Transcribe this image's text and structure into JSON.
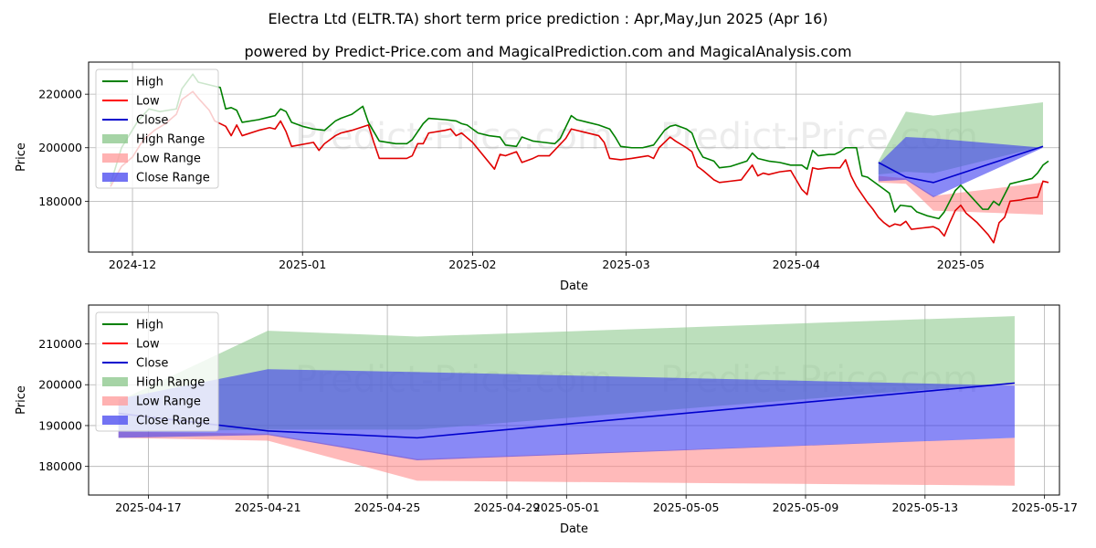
{
  "title_line1": "Electra Ltd (ELTR.TA) short term price prediction : Apr,May,Jun 2025 (Apr 16)",
  "title_line2": "powered by Predict-Price.com and MagicalPrediction.com and MagicalAnalysis.com",
  "watermark": "Predict-Price.com",
  "chart_data": [
    {
      "type": "line",
      "xlabel": "Date",
      "ylabel": "Price",
      "grid": true,
      "legend_position": "top-left",
      "xlim": [
        "2024-11-23",
        "2025-05-19"
      ],
      "ylim": [
        161000,
        232000
      ],
      "x_ticks": [
        {
          "date": "2024-12-01",
          "label": "2024-12"
        },
        {
          "date": "2025-01-01",
          "label": "2025-01"
        },
        {
          "date": "2025-02-01",
          "label": "2025-02"
        },
        {
          "date": "2025-03-01",
          "label": "2025-03"
        },
        {
          "date": "2025-04-01",
          "label": "2025-04"
        },
        {
          "date": "2025-05-01",
          "label": "2025-05"
        }
      ],
      "y_ticks": [
        {
          "value": 180000,
          "label": "180000"
        },
        {
          "value": 200000,
          "label": "200000"
        },
        {
          "value": 220000,
          "label": "220000"
        }
      ],
      "legend": [
        {
          "label": "High",
          "kind": "line",
          "color": "#008000"
        },
        {
          "label": "Low",
          "kind": "line",
          "color": "#ff0000"
        },
        {
          "label": "Close",
          "kind": "line",
          "color": "#0000cd"
        },
        {
          "label": "High Range",
          "kind": "fill",
          "color": "#90c990"
        },
        {
          "label": "Low Range",
          "kind": "fill",
          "color": "#ff9f9f"
        },
        {
          "label": "Close Range",
          "kind": "fill",
          "color": "#5050f0"
        }
      ],
      "high_history": [
        [
          "2024-11-27",
          186500
        ],
        [
          "2024-11-29",
          200000
        ],
        [
          "2024-12-02",
          210000
        ],
        [
          "2024-12-04",
          214500
        ],
        [
          "2024-12-06",
          213500
        ],
        [
          "2024-12-09",
          214500
        ],
        [
          "2024-12-10",
          222000
        ],
        [
          "2024-12-12",
          227500
        ],
        [
          "2024-12-13",
          224500
        ],
        [
          "2024-12-16",
          223000
        ],
        [
          "2024-12-17",
          222500
        ],
        [
          "2024-12-18",
          214500
        ],
        [
          "2024-12-19",
          215000
        ],
        [
          "2024-12-20",
          214000
        ],
        [
          "2024-12-21",
          209500
        ],
        [
          "2024-12-24",
          210500
        ],
        [
          "2024-12-26",
          211500
        ],
        [
          "2024-12-27",
          212000
        ],
        [
          "2024-12-28",
          214500
        ],
        [
          "2024-12-29",
          213500
        ],
        [
          "2024-12-30",
          209500
        ],
        [
          "2025-01-01",
          208000
        ],
        [
          "2025-01-03",
          207000
        ],
        [
          "2025-01-05",
          206500
        ],
        [
          "2025-01-07",
          210000
        ],
        [
          "2025-01-08",
          211000
        ],
        [
          "2025-01-10",
          212500
        ],
        [
          "2025-01-12",
          215500
        ],
        [
          "2025-01-13",
          209500
        ],
        [
          "2025-01-15",
          202500
        ],
        [
          "2025-01-18",
          201500
        ],
        [
          "2025-01-20",
          201500
        ],
        [
          "2025-01-21",
          203000
        ],
        [
          "2025-01-23",
          209000
        ],
        [
          "2025-01-24",
          211000
        ],
        [
          "2025-01-27",
          210500
        ],
        [
          "2025-01-29",
          210000
        ],
        [
          "2025-01-30",
          209000
        ],
        [
          "2025-01-31",
          208500
        ],
        [
          "2025-02-02",
          205500
        ],
        [
          "2025-02-04",
          204500
        ],
        [
          "2025-02-06",
          204000
        ],
        [
          "2025-02-07",
          201000
        ],
        [
          "2025-02-09",
          200500
        ],
        [
          "2025-02-10",
          204000
        ],
        [
          "2025-02-12",
          202500
        ],
        [
          "2025-02-14",
          202000
        ],
        [
          "2025-02-16",
          201500
        ],
        [
          "2025-02-17",
          203500
        ],
        [
          "2025-02-19",
          212000
        ],
        [
          "2025-02-20",
          210500
        ],
        [
          "2025-02-22",
          209500
        ],
        [
          "2025-02-24",
          208500
        ],
        [
          "2025-02-26",
          207000
        ],
        [
          "2025-02-27",
          204000
        ],
        [
          "2025-02-28",
          200500
        ],
        [
          "2025-03-02",
          200000
        ],
        [
          "2025-03-04",
          200000
        ],
        [
          "2025-03-06",
          201000
        ],
        [
          "2025-03-08",
          206500
        ],
        [
          "2025-03-09",
          208000
        ],
        [
          "2025-03-10",
          208500
        ],
        [
          "2025-03-12",
          207000
        ],
        [
          "2025-03-13",
          205500
        ],
        [
          "2025-03-14",
          200000
        ],
        [
          "2025-03-15",
          196500
        ],
        [
          "2025-03-17",
          195000
        ],
        [
          "2025-03-18",
          192500
        ],
        [
          "2025-03-20",
          193000
        ],
        [
          "2025-03-23",
          195000
        ],
        [
          "2025-03-24",
          198000
        ],
        [
          "2025-03-25",
          196000
        ],
        [
          "2025-03-27",
          195000
        ],
        [
          "2025-03-29",
          194500
        ],
        [
          "2025-03-31",
          193500
        ],
        [
          "2025-04-02",
          193500
        ],
        [
          "2025-04-03",
          192000
        ],
        [
          "2025-04-04",
          199000
        ],
        [
          "2025-04-05",
          197000
        ],
        [
          "2025-04-07",
          197500
        ],
        [
          "2025-04-08",
          197500
        ],
        [
          "2025-04-09",
          198500
        ],
        [
          "2025-04-10",
          200000
        ],
        [
          "2025-04-12",
          200000
        ],
        [
          "2025-04-13",
          189500
        ],
        [
          "2025-04-14",
          189000
        ],
        [
          "2025-04-15",
          187500
        ],
        [
          "2025-04-16",
          186000
        ],
        [
          "2025-04-17",
          184500
        ],
        [
          "2025-04-18",
          183000
        ],
        [
          "2025-04-19",
          176000
        ],
        [
          "2025-04-20",
          178500
        ],
        [
          "2025-04-22",
          178000
        ],
        [
          "2025-04-23",
          176000
        ],
        [
          "2025-04-25",
          174500
        ],
        [
          "2025-04-27",
          173500
        ],
        [
          "2025-04-28",
          176000
        ],
        [
          "2025-04-30",
          184000
        ],
        [
          "2025-05-01",
          186000
        ],
        [
          "2025-05-03",
          181500
        ],
        [
          "2025-05-05",
          177000
        ],
        [
          "2025-05-06",
          177000
        ],
        [
          "2025-05-07",
          180000
        ],
        [
          "2025-05-08",
          178500
        ],
        [
          "2025-05-10",
          186500
        ],
        [
          "2025-05-12",
          187500
        ],
        [
          "2025-05-14",
          188500
        ],
        [
          "2025-05-15",
          190500
        ],
        [
          "2025-05-16",
          193500
        ],
        [
          "2025-05-17",
          195000
        ]
      ],
      "low_history": [
        [
          "2024-11-27",
          185500
        ],
        [
          "2024-11-29",
          193000
        ],
        [
          "2024-12-01",
          196500
        ],
        [
          "2024-12-03",
          203000
        ],
        [
          "2024-12-05",
          206500
        ],
        [
          "2024-12-07",
          209000
        ],
        [
          "2024-12-09",
          212500
        ],
        [
          "2024-12-10",
          218000
        ],
        [
          "2024-12-12",
          221000
        ],
        [
          "2024-12-13",
          218500
        ],
        [
          "2024-12-15",
          214000
        ],
        [
          "2024-12-16",
          210000
        ],
        [
          "2024-12-18",
          208000
        ],
        [
          "2024-12-19",
          204500
        ],
        [
          "2024-12-20",
          208500
        ],
        [
          "2024-12-21",
          204500
        ],
        [
          "2024-12-24",
          206500
        ],
        [
          "2024-12-26",
          207500
        ],
        [
          "2024-12-27",
          207000
        ],
        [
          "2024-12-28",
          210000
        ],
        [
          "2024-12-29",
          206000
        ],
        [
          "2024-12-30",
          200500
        ],
        [
          "2025-01-03",
          202000
        ],
        [
          "2025-01-04",
          199000
        ],
        [
          "2025-01-05",
          201500
        ],
        [
          "2025-01-07",
          204500
        ],
        [
          "2025-01-08",
          205500
        ],
        [
          "2025-01-10",
          206500
        ],
        [
          "2025-01-13",
          208500
        ],
        [
          "2025-01-14",
          202000
        ],
        [
          "2025-01-15",
          196000
        ],
        [
          "2025-01-20",
          196000
        ],
        [
          "2025-01-21",
          197000
        ],
        [
          "2025-01-22",
          201500
        ],
        [
          "2025-01-23",
          201500
        ],
        [
          "2025-01-24",
          205500
        ],
        [
          "2025-01-27",
          206500
        ],
        [
          "2025-01-28",
          207000
        ],
        [
          "2025-01-29",
          204500
        ],
        [
          "2025-01-30",
          205500
        ],
        [
          "2025-02-01",
          202000
        ],
        [
          "2025-02-05",
          192000
        ],
        [
          "2025-02-06",
          197500
        ],
        [
          "2025-02-07",
          197000
        ],
        [
          "2025-02-09",
          198500
        ],
        [
          "2025-02-10",
          194500
        ],
        [
          "2025-02-12",
          196000
        ],
        [
          "2025-02-13",
          197000
        ],
        [
          "2025-02-15",
          197000
        ],
        [
          "2025-02-18",
          203500
        ],
        [
          "2025-02-19",
          207000
        ],
        [
          "2025-02-21",
          206000
        ],
        [
          "2025-02-24",
          204500
        ],
        [
          "2025-02-25",
          202000
        ],
        [
          "2025-02-26",
          196000
        ],
        [
          "2025-02-28",
          195500
        ],
        [
          "2025-03-02",
          196000
        ],
        [
          "2025-03-05",
          197000
        ],
        [
          "2025-03-06",
          196000
        ],
        [
          "2025-03-07",
          200000
        ],
        [
          "2025-03-09",
          204000
        ],
        [
          "2025-03-10",
          202500
        ],
        [
          "2025-03-12",
          200000
        ],
        [
          "2025-03-13",
          198500
        ],
        [
          "2025-03-14",
          193000
        ],
        [
          "2025-03-15",
          191500
        ],
        [
          "2025-03-17",
          188000
        ],
        [
          "2025-03-18",
          187000
        ],
        [
          "2025-03-20",
          187500
        ],
        [
          "2025-03-22",
          188000
        ],
        [
          "2025-03-24",
          193500
        ],
        [
          "2025-03-25",
          189500
        ],
        [
          "2025-03-26",
          190500
        ],
        [
          "2025-03-27",
          190000
        ],
        [
          "2025-03-29",
          191000
        ],
        [
          "2025-03-31",
          191500
        ],
        [
          "2025-04-02",
          184500
        ],
        [
          "2025-04-03",
          182500
        ],
        [
          "2025-04-04",
          192500
        ],
        [
          "2025-04-05",
          192000
        ],
        [
          "2025-04-07",
          192500
        ],
        [
          "2025-04-09",
          192500
        ],
        [
          "2025-04-10",
          195500
        ],
        [
          "2025-04-11",
          189500
        ],
        [
          "2025-04-12",
          185500
        ],
        [
          "2025-04-14",
          179500
        ],
        [
          "2025-04-15",
          177000
        ],
        [
          "2025-04-16",
          174000
        ],
        [
          "2025-04-17",
          172000
        ],
        [
          "2025-04-18",
          170500
        ],
        [
          "2025-04-19",
          171500
        ],
        [
          "2025-04-20",
          171000
        ],
        [
          "2025-04-21",
          172500
        ],
        [
          "2025-04-22",
          169500
        ],
        [
          "2025-04-24",
          170000
        ],
        [
          "2025-04-26",
          170500
        ],
        [
          "2025-04-27",
          169500
        ],
        [
          "2025-04-28",
          167000
        ],
        [
          "2025-04-29",
          172000
        ],
        [
          "2025-04-30",
          176500
        ],
        [
          "2025-05-01",
          178500
        ],
        [
          "2025-05-02",
          175500
        ],
        [
          "2025-05-04",
          172000
        ],
        [
          "2025-05-06",
          167500
        ],
        [
          "2025-05-07",
          164500
        ],
        [
          "2025-05-08",
          172000
        ],
        [
          "2025-05-09",
          174000
        ],
        [
          "2025-05-10",
          180000
        ],
        [
          "2025-05-12",
          180500
        ],
        [
          "2025-05-13",
          181000
        ],
        [
          "2025-05-15",
          181500
        ],
        [
          "2025-05-16",
          187500
        ],
        [
          "2025-05-17",
          187000
        ]
      ],
      "forecast": {
        "dates": [
          "2025-04-16",
          "2025-04-21",
          "2025-04-26",
          "2025-05-16"
        ],
        "high_range_upper": [
          195000,
          213500,
          212000,
          217000
        ],
        "high_range_lower": [
          190000,
          191000,
          190500,
          200500
        ],
        "low_range_upper": [
          189500,
          188500,
          182000,
          187000
        ],
        "low_range_lower": [
          187000,
          186500,
          176500,
          175000
        ],
        "close_range_upper": [
          194000,
          204000,
          203500,
          200000
        ],
        "close_range_lower": [
          187500,
          188000,
          181500,
          200000
        ],
        "close": [
          194500,
          189000,
          187000,
          200500
        ]
      }
    },
    {
      "type": "line",
      "xlabel": "Date",
      "ylabel": "Price",
      "grid": true,
      "legend_position": "top-left",
      "xlim": [
        "2025-04-15",
        "2025-05-17.5"
      ],
      "ylim": [
        173000,
        219500
      ],
      "x_ticks": [
        {
          "date": "2025-04-17",
          "label": "2025-04-17"
        },
        {
          "date": "2025-04-21",
          "label": "2025-04-21"
        },
        {
          "date": "2025-04-25",
          "label": "2025-04-25"
        },
        {
          "date": "2025-04-29",
          "label": "2025-04-29"
        },
        {
          "date": "2025-05-01",
          "label": "2025-05-01"
        },
        {
          "date": "2025-05-05",
          "label": "2025-05-05"
        },
        {
          "date": "2025-05-09",
          "label": "2025-05-09"
        },
        {
          "date": "2025-05-13",
          "label": "2025-05-13"
        },
        {
          "date": "2025-05-17",
          "label": "2025-05-17"
        }
      ],
      "y_ticks": [
        {
          "value": 180000,
          "label": "180000"
        },
        {
          "value": 190000,
          "label": "190000"
        },
        {
          "value": 200000,
          "label": "200000"
        },
        {
          "value": 210000,
          "label": "210000"
        }
      ],
      "legend": [
        {
          "label": "High",
          "kind": "line",
          "color": "#008000"
        },
        {
          "label": "Low",
          "kind": "line",
          "color": "#ff0000"
        },
        {
          "label": "Close",
          "kind": "line",
          "color": "#0000cd"
        },
        {
          "label": "High Range",
          "kind": "fill",
          "color": "#90c990"
        },
        {
          "label": "Low Range",
          "kind": "fill",
          "color": "#ff9f9f"
        },
        {
          "label": "Close Range",
          "kind": "fill",
          "color": "#5050f0"
        }
      ],
      "forecast": {
        "dates": [
          "2025-04-16",
          "2025-04-21",
          "2025-04-26",
          "2025-05-16"
        ],
        "high_range_upper": [
          196000,
          213200,
          211800,
          216800
        ],
        "high_range_lower": [
          188500,
          189000,
          189000,
          200500
        ],
        "low_range_upper": [
          188500,
          188000,
          181800,
          187000
        ],
        "low_range_lower": [
          187000,
          186300,
          176500,
          175300
        ],
        "close_range_upper": [
          196500,
          203800,
          203100,
          199800
        ],
        "close_range_lower": [
          187000,
          187700,
          181500,
          187000
        ],
        "close": [
          193000,
          188700,
          187000,
          200400
        ]
      }
    }
  ]
}
